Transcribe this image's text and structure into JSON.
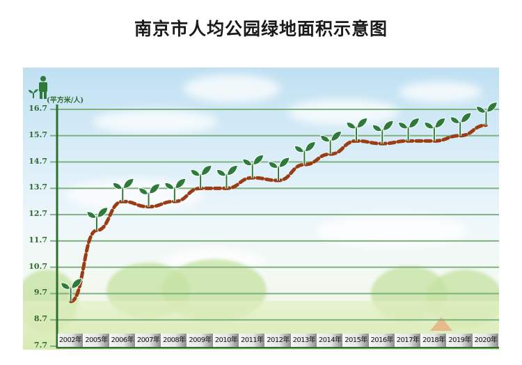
{
  "title": "南京市人均公园绿地面积示意图",
  "unit_label": "(平方米/人)",
  "icons": {
    "person": "person-icon",
    "sprout": "sprout-icon"
  },
  "colors": {
    "gridline": "#7fb07f",
    "axis": "#2e6e2e",
    "line": "#9b3d14",
    "sprout": "#2f7a3a",
    "tick_label": "#2f6b2f"
  },
  "y_ticks": [
    "16.7",
    "15.7",
    "14.7",
    "13.7",
    "12.7",
    "11.7",
    "10.7",
    "9.7",
    "8.7",
    "7.7"
  ],
  "x_labels": [
    "2002年",
    "2005年",
    "2006年",
    "2007年",
    "2008年",
    "2009年",
    "2010年",
    "2011年",
    "2012年",
    "2013年",
    "2014年",
    "2015年",
    "2016年",
    "2017年",
    "2018年",
    "2019年",
    "2020年"
  ],
  "chart_data": {
    "type": "line",
    "title": "南京市人均公园绿地面积示意图",
    "xlabel": "",
    "ylabel": "(平方米/人)",
    "categories": [
      "2002年",
      "2005年",
      "2006年",
      "2007年",
      "2008年",
      "2009年",
      "2010年",
      "2011年",
      "2012年",
      "2013年",
      "2014年",
      "2015年",
      "2016年",
      "2017年",
      "2018年",
      "2019年",
      "2020年"
    ],
    "series": [
      {
        "name": "人均公园绿地面积",
        "values": [
          9.4,
          12.1,
          13.2,
          13.0,
          13.2,
          13.7,
          13.7,
          14.1,
          14.0,
          14.6,
          15.0,
          15.5,
          15.4,
          15.5,
          15.5,
          15.7,
          16.1
        ]
      }
    ],
    "yticks": [
      7.7,
      8.7,
      9.7,
      10.7,
      11.7,
      12.7,
      13.7,
      14.7,
      15.7,
      16.7
    ],
    "ylim": [
      7.7,
      16.7
    ],
    "grid": true,
    "legend": "none",
    "line_style": "dashed, brown, with sprout markers at each data point"
  }
}
